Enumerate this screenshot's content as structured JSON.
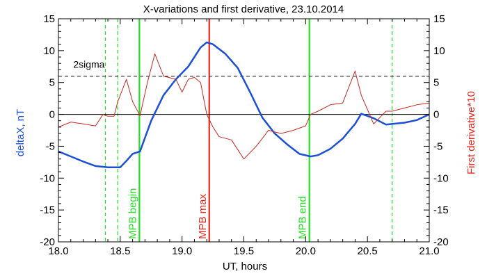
{
  "chart_data": {
    "type": "line",
    "title": "X-variations and first derivative, 23.10.2014",
    "xlabel": "UT, hours",
    "ylabel_left": "deltaX, nT",
    "ylabel_right": "First derivative*10",
    "xlim": [
      18.0,
      21.0
    ],
    "ylim": [
      -20,
      15
    ],
    "x_ticks": [
      "18.0",
      "18.5",
      "19.0",
      "19.5",
      "20.0",
      "20.5",
      "21.0"
    ],
    "y_ticks": [
      "15",
      "10",
      "5",
      "0",
      "-5",
      "-10",
      "-15",
      "-20"
    ],
    "colors": {
      "deltaX": "#1a4fd6",
      "derivative": "#c8281e",
      "mpb": "#22e022",
      "max": "#e8281e",
      "axes": "#000000"
    },
    "series": [
      {
        "name": "deltaX, nT",
        "axis": "left",
        "x": [
          18.0,
          18.1,
          18.2,
          18.3,
          18.4,
          18.5,
          18.55,
          18.6,
          18.66,
          18.75,
          18.85,
          18.95,
          19.05,
          19.15,
          19.2,
          19.25,
          19.35,
          19.45,
          19.55,
          19.65,
          19.75,
          19.85,
          19.95,
          20.04,
          20.1,
          20.2,
          20.3,
          20.4,
          20.45,
          20.55,
          20.65,
          20.8,
          20.9,
          21.0
        ],
        "values": [
          -5.8,
          -6.6,
          -7.4,
          -8.1,
          -8.3,
          -8.3,
          -7.3,
          -6.2,
          -5.8,
          -1.0,
          3.0,
          5.5,
          7.5,
          10.5,
          11.3,
          11.0,
          9.5,
          7.3,
          3.5,
          -0.5,
          -3.0,
          -4.7,
          -6.2,
          -6.6,
          -6.4,
          -5.4,
          -3.8,
          -1.5,
          0.1,
          -0.6,
          -1.6,
          -1.3,
          -0.9,
          0.0
        ]
      },
      {
        "name": "First derivative*10",
        "axis": "right",
        "x": [
          18.0,
          18.1,
          18.2,
          18.3,
          18.36,
          18.4,
          18.45,
          18.48,
          18.55,
          18.6,
          18.66,
          18.72,
          18.78,
          18.85,
          18.95,
          19.0,
          19.05,
          19.1,
          19.15,
          19.2,
          19.25,
          19.3,
          19.4,
          19.5,
          19.6,
          19.7,
          19.8,
          19.9,
          20.0,
          20.04,
          20.1,
          20.2,
          20.3,
          20.4,
          20.45,
          20.55,
          20.65,
          20.7,
          20.8,
          20.9,
          21.0
        ],
        "values": [
          -2.0,
          -1.2,
          -1.5,
          -1.8,
          0.0,
          -0.3,
          -0.3,
          2.0,
          5.5,
          2.0,
          -0.2,
          5.0,
          9.5,
          6.0,
          5.5,
          3.5,
          5.5,
          5.8,
          5.0,
          0.0,
          -2.0,
          -3.5,
          -4.0,
          -7.0,
          -5.0,
          -2.5,
          -3.0,
          -2.5,
          -1.8,
          0.0,
          0.5,
          1.5,
          1.8,
          6.8,
          3.0,
          -1.5,
          0.5,
          0.5,
          1.0,
          1.5,
          1.8
        ]
      }
    ],
    "reference_lines": {
      "sigma_level": 6,
      "sigma_label": "2sigma",
      "zero_level": 0
    },
    "markers": [
      {
        "x": 18.38,
        "style": "dashed",
        "color": "mpb",
        "label": ""
      },
      {
        "x": 18.48,
        "style": "dashed",
        "color": "mpb",
        "label": ""
      },
      {
        "x": 18.655,
        "style": "solid",
        "color": "mpb",
        "label": "MPB begin"
      },
      {
        "x": 19.22,
        "style": "solid",
        "color": "max",
        "label": "MPB max"
      },
      {
        "x": 20.03,
        "style": "solid",
        "color": "mpb",
        "label": "MPB end"
      },
      {
        "x": 20.7,
        "style": "dashed",
        "color": "mpb",
        "label": ""
      }
    ]
  }
}
